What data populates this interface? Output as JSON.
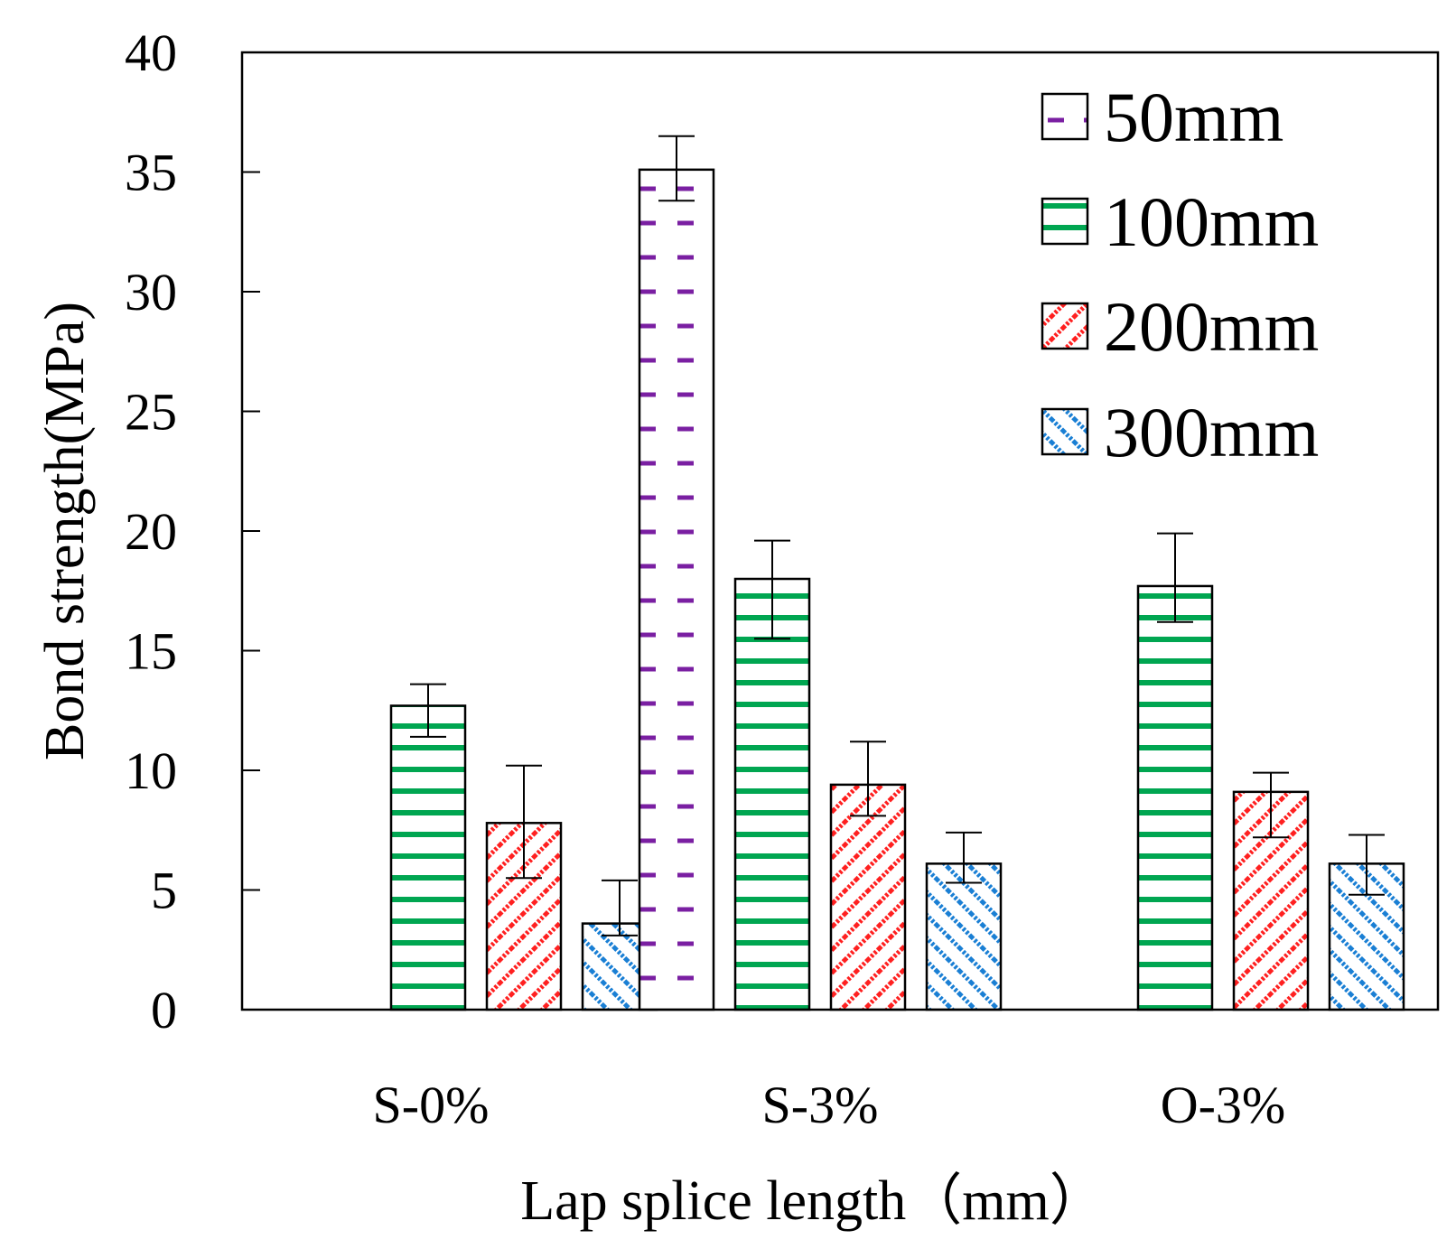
{
  "chart_data": {
    "type": "bar",
    "title": "",
    "xlabel": "Lap splice length（mm）",
    "ylabel": "Bond strength(MPa)",
    "ylim": [
      0,
      40
    ],
    "yticks": [
      0,
      5,
      10,
      15,
      20,
      25,
      30,
      35,
      40
    ],
    "categories": [
      "S-0%",
      "S-3%",
      "O-3%"
    ],
    "legend_position": "top-right",
    "series": [
      {
        "name": "50mm",
        "pattern": "dash-vertical",
        "color": "#7a1fa2",
        "values": [
          null,
          35.1,
          null
        ],
        "error_low": [
          null,
          33.8,
          null
        ],
        "error_high": [
          null,
          36.5,
          null
        ]
      },
      {
        "name": "100mm",
        "pattern": "horizontal",
        "color": "#00a651",
        "values": [
          12.7,
          18.0,
          17.7
        ],
        "error_low": [
          11.4,
          15.5,
          16.2
        ],
        "error_high": [
          13.6,
          19.6,
          19.9
        ]
      },
      {
        "name": "200mm",
        "pattern": "diagonal-up",
        "color": "#ff2020",
        "values": [
          7.8,
          9.4,
          9.1
        ],
        "error_low": [
          5.5,
          8.1,
          7.2
        ],
        "error_high": [
          10.2,
          11.2,
          9.9
        ]
      },
      {
        "name": "300mm",
        "pattern": "diagonal-down",
        "color": "#1a7fd4",
        "values": [
          3.6,
          6.1,
          6.1
        ],
        "error_low": [
          3.1,
          5.3,
          4.8
        ],
        "error_high": [
          5.4,
          7.4,
          7.3
        ]
      }
    ]
  }
}
